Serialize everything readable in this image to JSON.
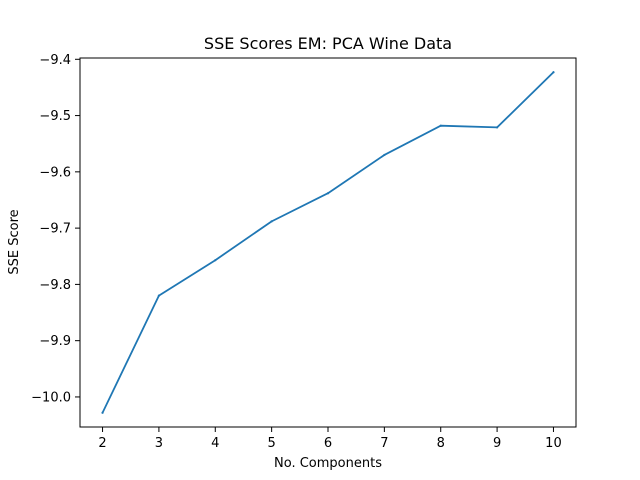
{
  "chart_data": {
    "type": "line",
    "title": "SSE Scores EM: PCA Wine Data",
    "xlabel": "No. Components",
    "ylabel": "SSE Score",
    "x": [
      2,
      3,
      4,
      5,
      6,
      7,
      8,
      9,
      10
    ],
    "series": [
      {
        "values": [
          -10.028,
          -9.82,
          -9.757,
          -9.688,
          -9.638,
          -9.57,
          -9.518,
          -9.521,
          -9.423
        ],
        "color": "#1f77b4"
      }
    ],
    "xticks": [
      "2",
      "3",
      "4",
      "5",
      "6",
      "7",
      "8",
      "9",
      "10"
    ],
    "xtick_values": [
      2,
      3,
      4,
      5,
      6,
      7,
      8,
      9,
      10
    ],
    "yticks": [
      "−10.0",
      "−9.9",
      "−9.8",
      "−9.7",
      "−9.6",
      "−9.5",
      "−9.4"
    ],
    "ytick_values": [
      -10.0,
      -9.9,
      -9.8,
      -9.7,
      -9.6,
      -9.5,
      -9.4
    ],
    "xlim": [
      1.6,
      10.4
    ],
    "ylim": [
      -10.0534,
      -9.3977
    ],
    "grid": false,
    "legend": false
  }
}
